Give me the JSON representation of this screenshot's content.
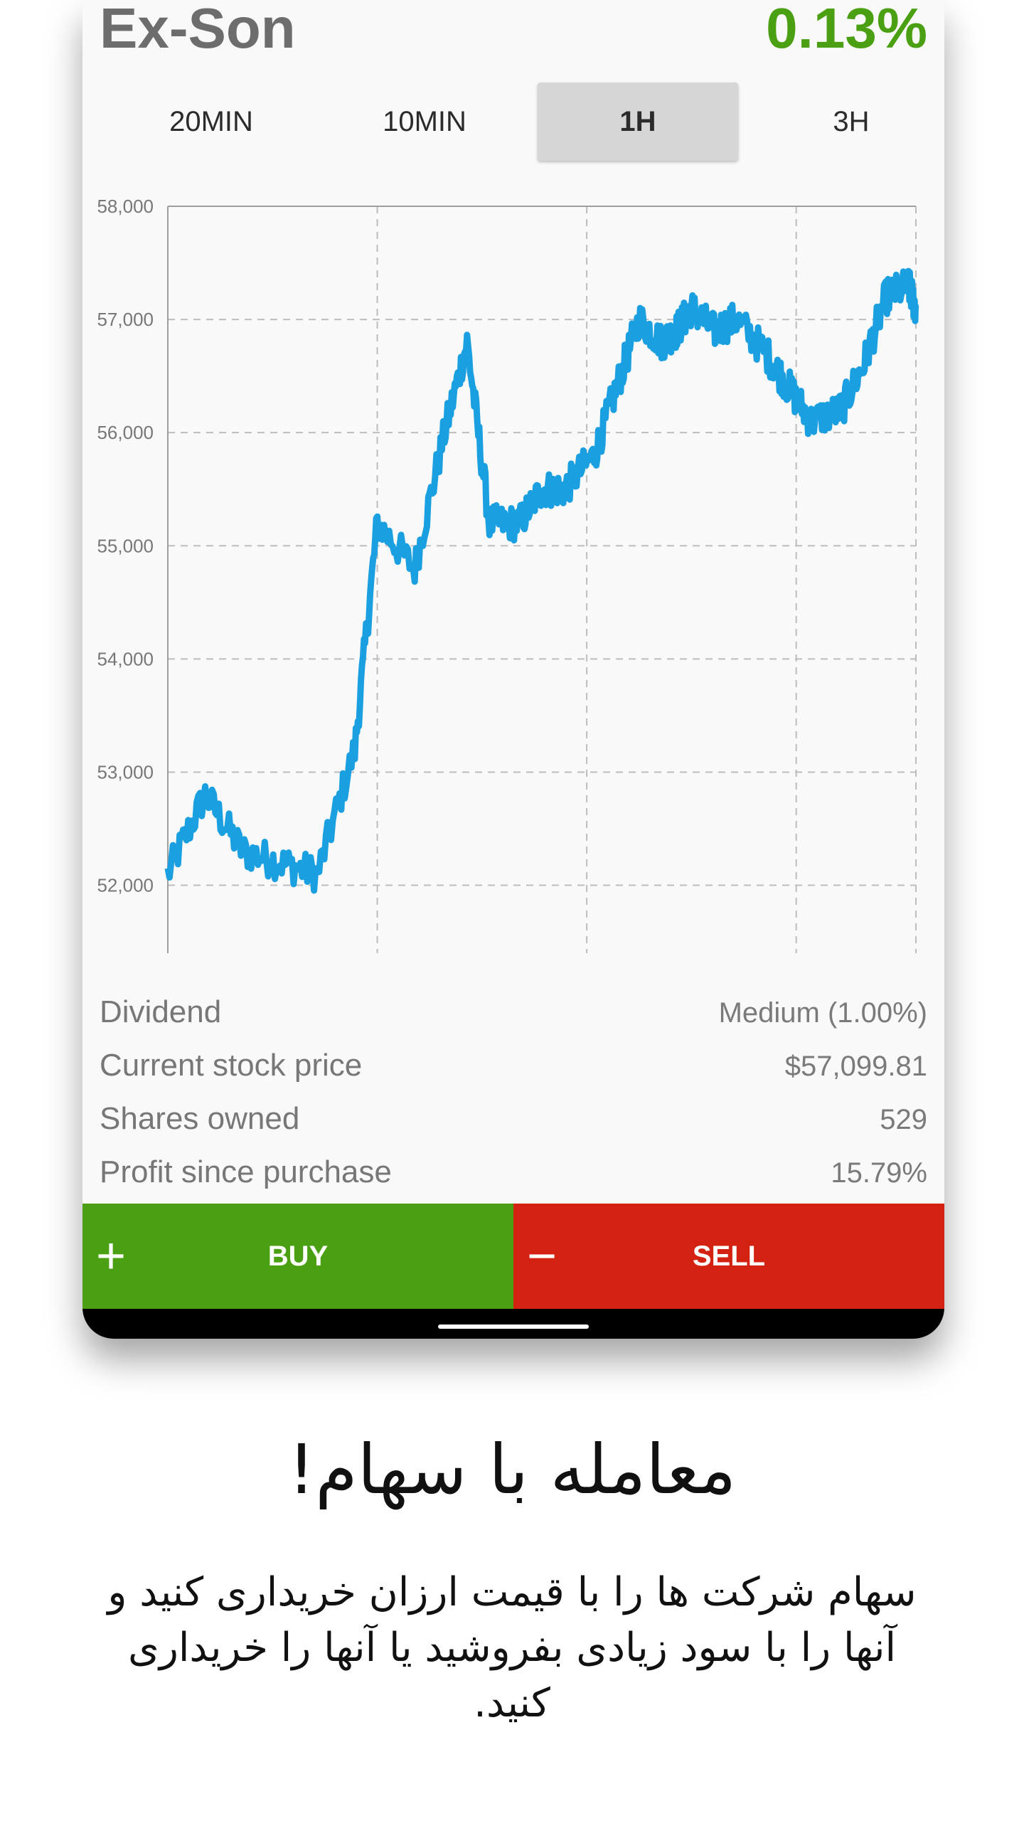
{
  "stock": {
    "name": "Ex-Son",
    "change": "0.13%"
  },
  "tabs": [
    {
      "label": "20MIN",
      "active": false
    },
    {
      "label": "10MIN",
      "active": false
    },
    {
      "label": "1H",
      "active": true
    },
    {
      "label": "3H",
      "active": false
    }
  ],
  "chart_data": {
    "type": "line",
    "y_ticks": [
      "58,000",
      "57,000",
      "56,000",
      "55,000",
      "54,000",
      "53,000",
      "52,000"
    ],
    "ylim": [
      51400,
      58000
    ],
    "color": "#1a9fe0",
    "grid": true,
    "x": [
      0,
      0.05,
      0.1,
      0.15,
      0.2,
      0.25,
      0.28,
      0.33,
      0.37,
      0.4,
      0.43,
      0.47,
      0.5,
      0.53,
      0.57,
      0.6,
      0.63,
      0.66,
      0.68,
      0.7,
      0.73,
      0.76,
      0.8,
      0.83,
      0.86,
      0.9,
      0.93,
      0.96,
      0.99,
      1.0
    ],
    "values": [
      52100,
      52800,
      52300,
      52200,
      52100,
      53200,
      55200,
      54800,
      56000,
      56800,
      55200,
      55200,
      55500,
      55500,
      55800,
      56400,
      57000,
      56800,
      56900,
      57100,
      56900,
      57000,
      56700,
      56400,
      56100,
      56200,
      56600,
      57200,
      57300,
      57100
    ]
  },
  "stats": [
    {
      "label": "Dividend",
      "value": "Medium (1.00%)"
    },
    {
      "label": "Current stock price",
      "value": "$57,099.81"
    },
    {
      "label": "Shares owned",
      "value": "529"
    },
    {
      "label": "Profit since purchase",
      "value": "15.79%"
    }
  ],
  "actions": {
    "buy_label": "BUY",
    "sell_label": "SELL",
    "buy_symbol": "+",
    "sell_symbol": "−"
  },
  "promo": {
    "heading": "معامله با سهام!",
    "description": "سهام شرکت ها را با قیمت ارزان خریداری کنید و آنها را با سود زیادی بفروشید یا آنها را خریداری کنید."
  },
  "colors": {
    "positive": "#4aa012",
    "negative": "#d42212",
    "line": "#1a9fe0"
  }
}
